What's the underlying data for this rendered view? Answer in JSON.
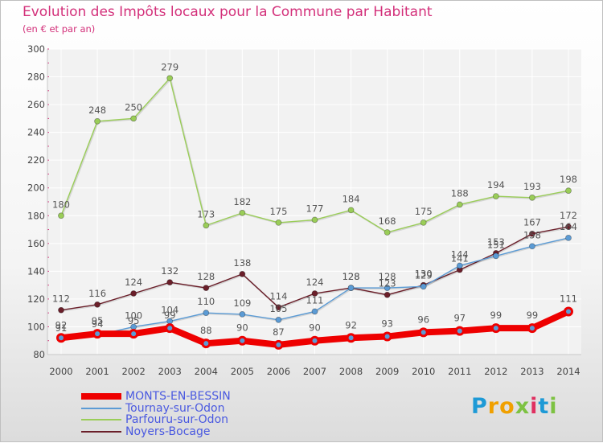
{
  "header": {
    "title": "Evolution des Impôts locaux pour la Commune par Habitant",
    "subtitle": "(en € et par an)"
  },
  "logo": {
    "letters": [
      {
        "ch": "P",
        "color": "#1e9ad6"
      },
      {
        "ch": "r",
        "color": "#f0a000"
      },
      {
        "ch": "o",
        "color": "#f0a000"
      },
      {
        "ch": "x",
        "color": "#7dc242"
      },
      {
        "ch": "i",
        "color": "#e03060"
      },
      {
        "ch": "t",
        "color": "#1e9ad6"
      },
      {
        "ch": "i",
        "color": "#7dc242"
      }
    ]
  },
  "chart_data": {
    "type": "line",
    "title": "Evolution des Impôts locaux pour la Commune par Habitant",
    "subtitle": "(en € et par an)",
    "x": [
      2000,
      2001,
      2002,
      2003,
      2004,
      2005,
      2006,
      2007,
      2008,
      2009,
      2010,
      2011,
      2012,
      2013,
      2014
    ],
    "ylim": [
      80,
      300
    ],
    "yticks": [
      80,
      100,
      120,
      140,
      160,
      180,
      200,
      220,
      240,
      260,
      280,
      300
    ],
    "grid": true,
    "legend_position": "bottom-left",
    "series": [
      {
        "name": "MONTS-EN-BESSIN",
        "color": "#ee0000",
        "values": [
          92,
          95,
          95,
          99,
          88,
          90,
          87,
          90,
          92,
          93,
          96,
          97,
          99,
          99,
          111
        ],
        "labels": [
          "92",
          "95",
          "95",
          "99",
          "88",
          "90",
          "87",
          "90",
          "92",
          "93",
          "96",
          "97",
          "99",
          "99",
          "111"
        ],
        "emphasis": true
      },
      {
        "name": "Tournay-sur-Odon",
        "color": "#5b9bd5",
        "values": [
          91,
          94,
          100,
          104,
          110,
          109,
          105,
          111,
          128,
          128,
          129,
          144,
          151,
          158,
          164
        ],
        "labels": [
          "91",
          "94",
          "100",
          "104",
          "110",
          "109",
          "105",
          "111",
          "128",
          "128",
          "129",
          "144",
          "151",
          "158",
          "164"
        ],
        "emphasis": false
      },
      {
        "name": "Parfouru-sur-Odon",
        "color": "#9acd58",
        "values": [
          180,
          248,
          250,
          279,
          173,
          182,
          175,
          177,
          184,
          168,
          175,
          188,
          194,
          193,
          198
        ],
        "labels": [
          "180",
          "248",
          "250",
          "279",
          "173",
          "182",
          "175",
          "177",
          "184",
          "168",
          "175",
          "188",
          "194",
          "193",
          "198"
        ],
        "emphasis": false
      },
      {
        "name": "Noyers-Bocage",
        "color": "#6b1f2a",
        "values": [
          112,
          116,
          124,
          132,
          128,
          138,
          114,
          124,
          128,
          123,
          130,
          141,
          153,
          167,
          172
        ],
        "labels": [
          "112",
          "116",
          "124",
          "132",
          "128",
          "138",
          "114",
          "124",
          "128",
          "123",
          "130",
          "141",
          "153",
          "167",
          "172"
        ],
        "emphasis": false
      }
    ]
  }
}
